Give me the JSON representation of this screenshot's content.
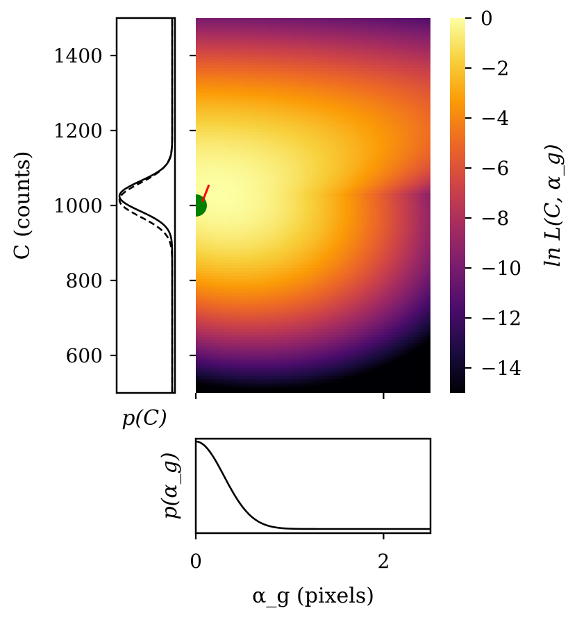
{
  "chart_data": [
    {
      "type": "heatmap",
      "panel": "joint-likelihood",
      "xlim": [
        0,
        2.5
      ],
      "ylim": [
        500,
        1500
      ],
      "x_ticks": [
        0,
        2
      ],
      "y_ticks": [
        600,
        800,
        1000,
        1200,
        1400
      ],
      "z_range": [
        -15,
        0
      ],
      "colormap": "inferno",
      "colorbar": {
        "label": "ln L(C, α_g)",
        "ticks": [
          0,
          -2,
          -4,
          -6,
          -8,
          -10,
          -12,
          -14
        ],
        "tick_labels": [
          "0",
          "−2",
          "−4",
          "−6",
          "−8",
          "−10",
          "−12",
          "−14"
        ]
      },
      "peak": {
        "alpha_g": 0.25,
        "C": 1030
      },
      "markers": [
        {
          "type": "scatter",
          "color": "#008000",
          "alpha_g": 0.0,
          "C": 1000
        },
        {
          "type": "line",
          "color": "#ff0000",
          "points": [
            {
              "alpha_g": 0.07,
              "C": 1010
            },
            {
              "alpha_g": 0.14,
              "C": 1055
            }
          ]
        }
      ]
    },
    {
      "type": "line",
      "panel": "marginal-C",
      "xlabel": "p(C)",
      "orientation": "vertical",
      "ylim": [
        500,
        1500
      ],
      "series": [
        {
          "style": "solid",
          "center": 1025,
          "sigma": 40
        },
        {
          "style": "dashed",
          "center": 1015,
          "sigma": 45
        }
      ]
    },
    {
      "type": "line",
      "panel": "marginal-alpha",
      "ylabel": "p(α_g)",
      "xlabel": "α_g (pixels)",
      "xlim": [
        0,
        2.5
      ],
      "x_ticks": [
        0,
        2
      ],
      "x_tick_labels": [
        "0",
        "2"
      ],
      "series": [
        {
          "style": "solid",
          "peak_at": 0.0,
          "width": 0.3,
          "baseline_after": 0.75
        }
      ]
    }
  ],
  "labels": {
    "y_axis_main": "C (counts)",
    "y_tick_labels": [
      "600",
      "800",
      "1000",
      "1200",
      "1400"
    ]
  },
  "colors": {
    "inferno": [
      "#000004",
      "#1b0c41",
      "#4a0c6b",
      "#781c6d",
      "#a52c60",
      "#cf4446",
      "#ed6925",
      "#fb9b06",
      "#f7d13d",
      "#fcffa4"
    ],
    "marker_green": "#008000",
    "marker_red": "#ff0000"
  }
}
